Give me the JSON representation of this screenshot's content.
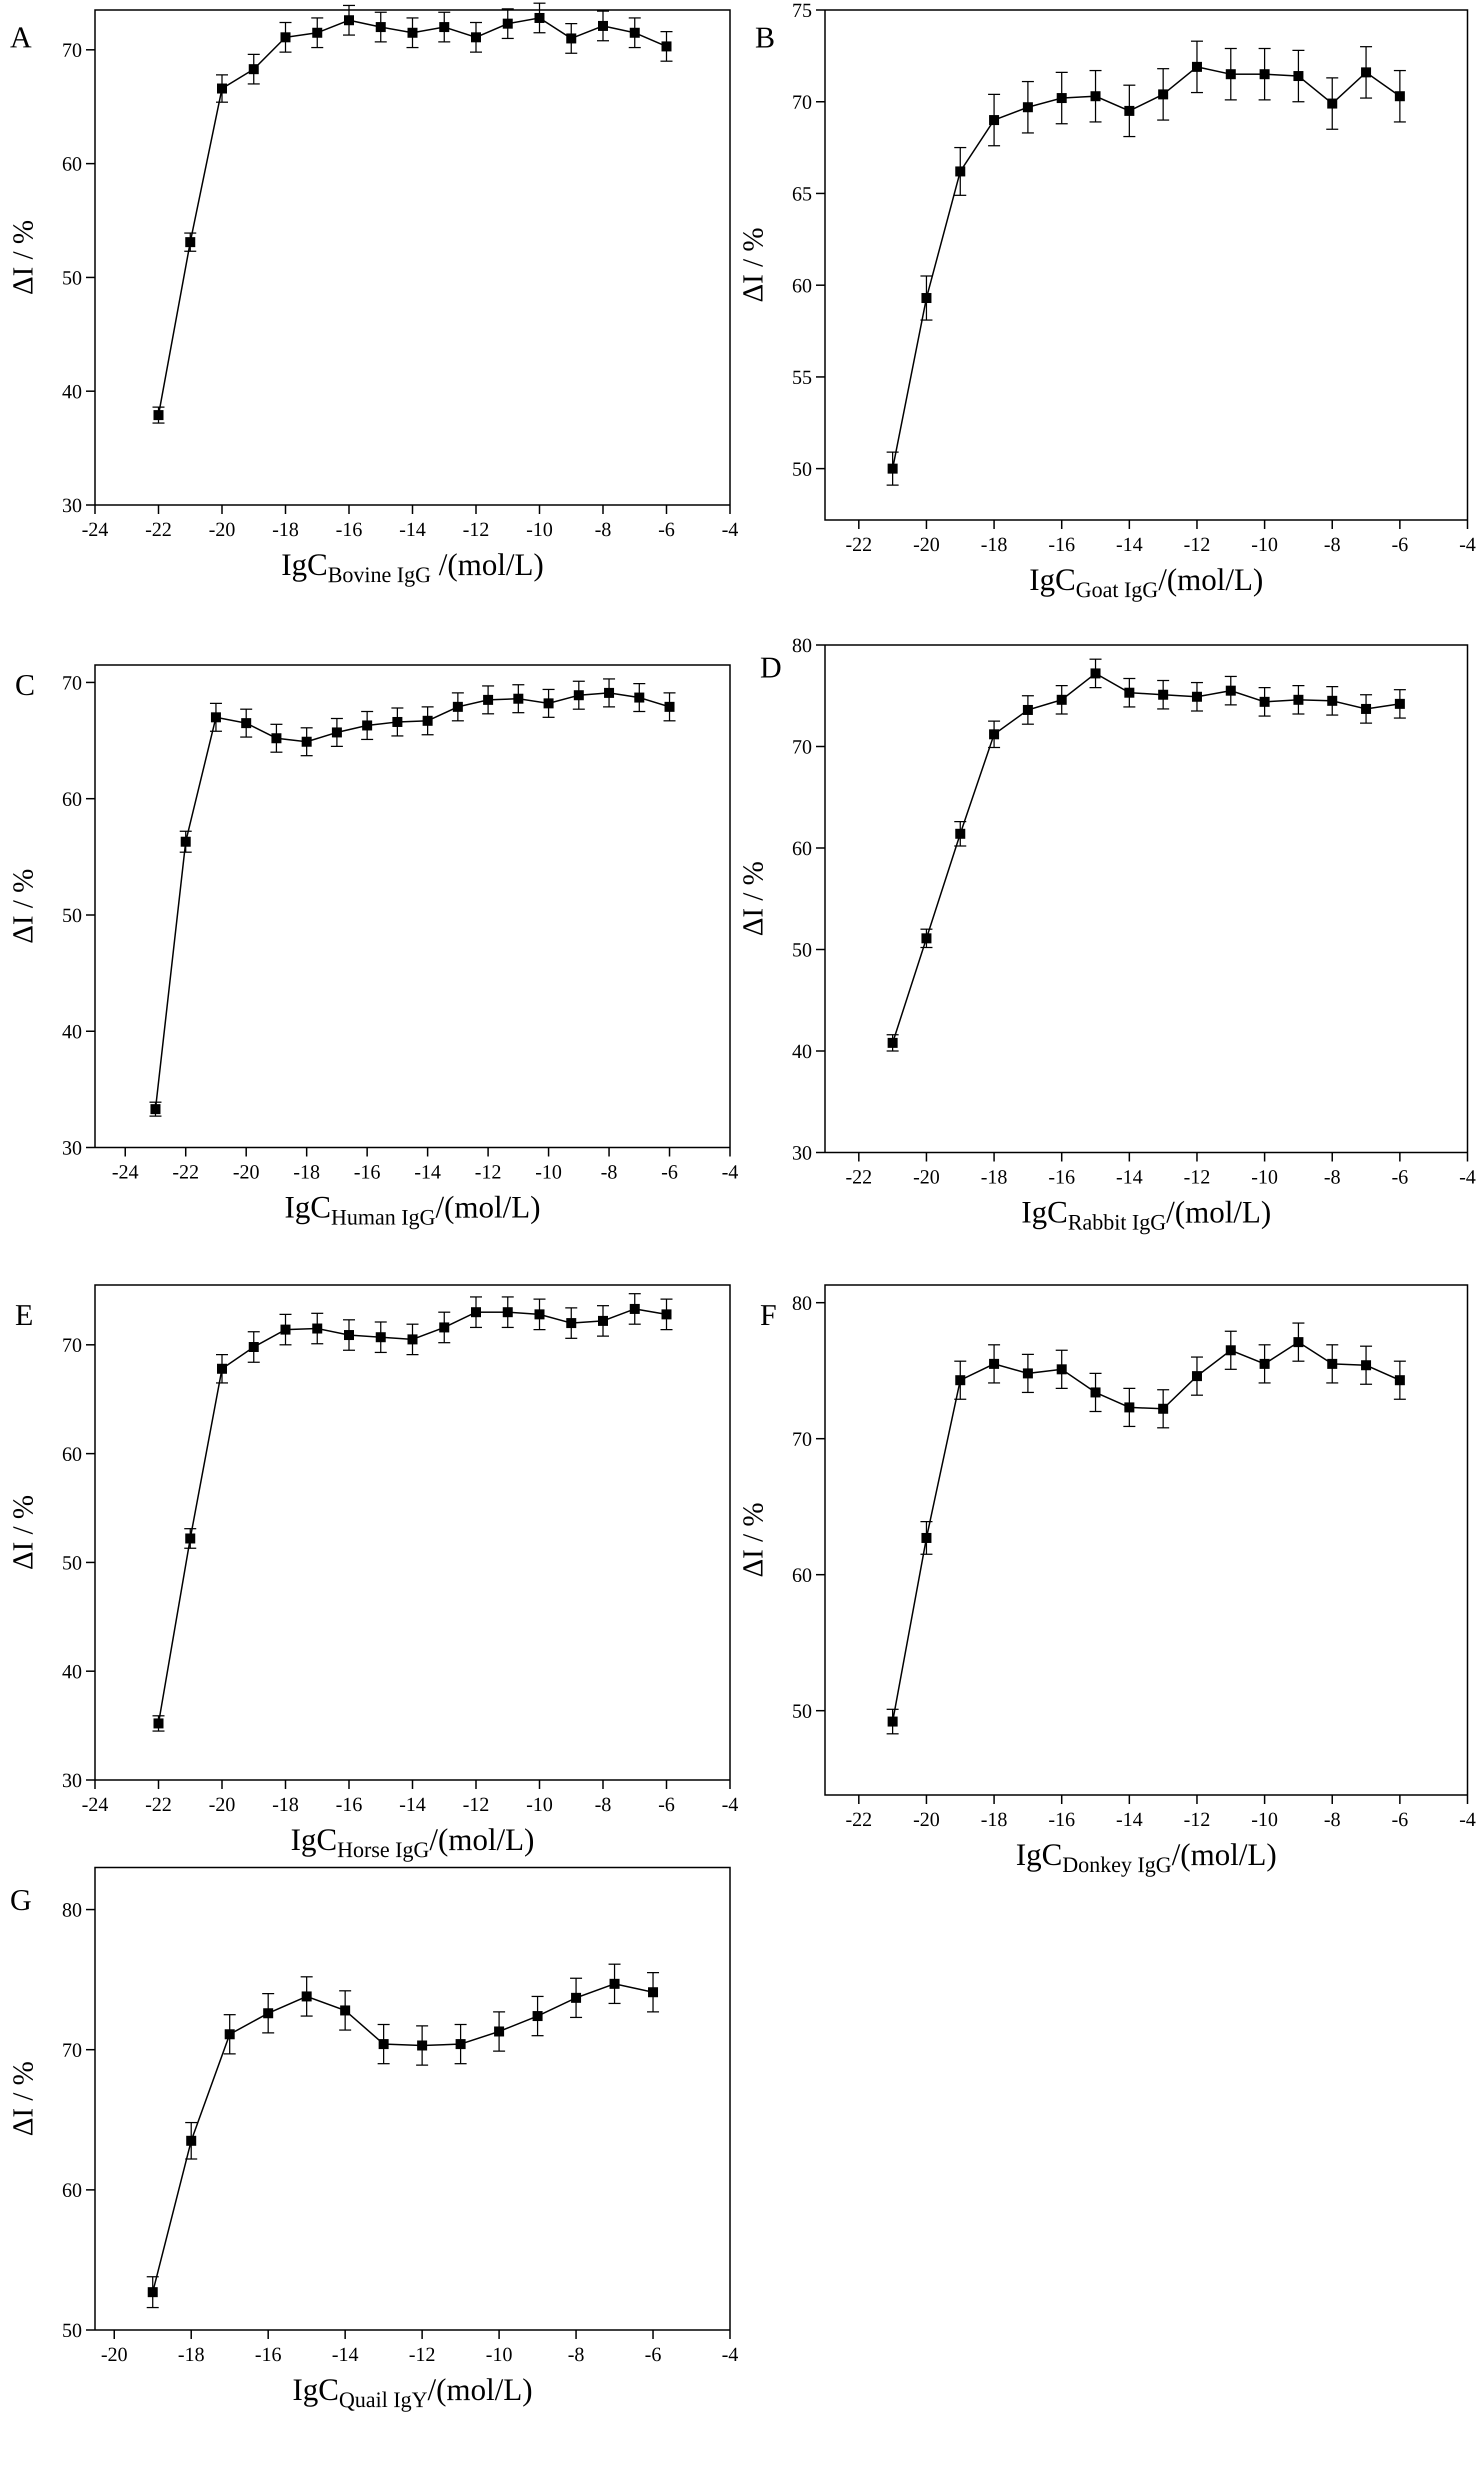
{
  "figure": {
    "y_axis_label": "ΔI / %",
    "x_axis_unit": "/(mol/L)"
  },
  "chart_data": [
    {
      "type": "line",
      "panel": "A",
      "xlabel_main": "IgC",
      "xlabel_sub": "Bovine IgG",
      "xlabel_tail": " /(mol/L)",
      "ylabel": "ΔI / %",
      "xlim": [
        -24,
        -4
      ],
      "ylim": [
        30,
        73.5
      ],
      "xticks": [
        -24,
        -22,
        -20,
        -18,
        -16,
        -14,
        -12,
        -10,
        -8,
        -6,
        -4
      ],
      "yticks": [
        30,
        40,
        50,
        60,
        70
      ],
      "x": [
        -22,
        -21,
        -20,
        -19,
        -18,
        -17,
        -16,
        -15,
        -14,
        -13,
        -12,
        -11,
        -10,
        -9,
        -8,
        -7,
        -6
      ],
      "y": [
        37.9,
        53.1,
        66.6,
        68.3,
        71.1,
        71.5,
        72.6,
        72.0,
        71.5,
        72.0,
        71.1,
        72.3,
        72.8,
        71.0,
        72.1,
        71.5,
        70.3
      ],
      "err": [
        0.7,
        0.8,
        1.2,
        1.3,
        1.3,
        1.3,
        1.3,
        1.3,
        1.3,
        1.3,
        1.3,
        1.3,
        1.3,
        1.3,
        1.3,
        1.3,
        1.3
      ]
    },
    {
      "type": "line",
      "panel": "B",
      "xlabel_main": "IgC",
      "xlabel_sub": "Goat IgG",
      "xlabel_tail": "/(mol/L)",
      "ylabel": "ΔI / %",
      "xlim": [
        -23,
        -4
      ],
      "ylim": [
        47.2,
        75
      ],
      "xticks": [
        -22,
        -20,
        -18,
        -16,
        -14,
        -12,
        -10,
        -8,
        -6,
        -4
      ],
      "yticks": [
        50,
        55,
        60,
        65,
        70,
        75
      ],
      "x": [
        -21,
        -20,
        -19,
        -18,
        -17,
        -16,
        -15,
        -14,
        -13,
        -12,
        -11,
        -10,
        -9,
        -8,
        -7,
        -6
      ],
      "y": [
        50.0,
        59.3,
        66.2,
        69.0,
        69.7,
        70.2,
        70.3,
        69.5,
        70.4,
        71.9,
        71.5,
        71.5,
        71.4,
        69.9,
        71.6,
        70.3
      ],
      "err": [
        0.9,
        1.2,
        1.3,
        1.4,
        1.4,
        1.4,
        1.4,
        1.4,
        1.4,
        1.4,
        1.4,
        1.4,
        1.4,
        1.4,
        1.4,
        1.4
      ]
    },
    {
      "type": "line",
      "panel": "C",
      "xlabel_main": "IgC",
      "xlabel_sub": "Human IgG",
      "xlabel_tail": "/(mol/L)",
      "ylabel": "ΔI / %",
      "xlim": [
        -25,
        -4
      ],
      "ylim": [
        30,
        71.5
      ],
      "xticks": [
        -24,
        -22,
        -20,
        -18,
        -16,
        -14,
        -12,
        -10,
        -8,
        -6,
        -4
      ],
      "yticks": [
        30,
        40,
        50,
        60,
        70
      ],
      "x": [
        -23,
        -22,
        -21,
        -20,
        -19,
        -18,
        -17,
        -16,
        -15,
        -14,
        -13,
        -12,
        -11,
        -10,
        -9,
        -8,
        -7,
        -6
      ],
      "y": [
        33.3,
        56.3,
        67.0,
        66.5,
        65.2,
        64.9,
        65.7,
        66.3,
        66.6,
        66.7,
        67.9,
        68.5,
        68.6,
        68.2,
        68.9,
        69.1,
        68.7,
        67.9
      ],
      "err": [
        0.6,
        0.9,
        1.2,
        1.2,
        1.2,
        1.2,
        1.2,
        1.2,
        1.2,
        1.2,
        1.2,
        1.2,
        1.2,
        1.2,
        1.2,
        1.2,
        1.2,
        1.2
      ]
    },
    {
      "type": "line",
      "panel": "D",
      "xlabel_main": "IgC",
      "xlabel_sub": "Rabbit IgG",
      "xlabel_tail": "/(mol/L)",
      "ylabel": "ΔI / %",
      "xlim": [
        -23,
        -4
      ],
      "ylim": [
        30,
        80
      ],
      "xticks": [
        -22,
        -20,
        -18,
        -16,
        -14,
        -12,
        -10,
        -8,
        -6,
        -4
      ],
      "yticks": [
        30,
        40,
        50,
        60,
        70,
        80
      ],
      "x": [
        -21,
        -20,
        -19,
        -18,
        -17,
        -16,
        -15,
        -14,
        -13,
        -12,
        -11,
        -10,
        -9,
        -8,
        -7,
        -6
      ],
      "y": [
        40.8,
        51.1,
        61.4,
        71.2,
        73.6,
        74.6,
        77.2,
        75.3,
        75.1,
        74.9,
        75.5,
        74.4,
        74.6,
        74.5,
        73.7,
        74.2
      ],
      "err": [
        0.8,
        0.9,
        1.2,
        1.3,
        1.4,
        1.4,
        1.4,
        1.4,
        1.4,
        1.4,
        1.4,
        1.4,
        1.4,
        1.4,
        1.4,
        1.4
      ]
    },
    {
      "type": "line",
      "panel": "E",
      "xlabel_main": "IgC",
      "xlabel_sub": "Horse IgG",
      "xlabel_tail": "/(mol/L)",
      "ylabel": "ΔI / %",
      "xlim": [
        -24,
        -4
      ],
      "ylim": [
        30,
        75.5
      ],
      "xticks": [
        -24,
        -22,
        -20,
        -18,
        -16,
        -14,
        -12,
        -10,
        -8,
        -6,
        -4
      ],
      "yticks": [
        30,
        40,
        50,
        60,
        70
      ],
      "x": [
        -22,
        -21,
        -20,
        -19,
        -18,
        -17,
        -16,
        -15,
        -14,
        -13,
        -12,
        -11,
        -10,
        -9,
        -8,
        -7,
        -6
      ],
      "y": [
        35.2,
        52.2,
        67.8,
        69.8,
        71.4,
        71.5,
        70.9,
        70.7,
        70.5,
        71.6,
        73.0,
        73.0,
        72.8,
        72.0,
        72.2,
        73.3,
        72.8
      ],
      "err": [
        0.7,
        0.9,
        1.3,
        1.4,
        1.4,
        1.4,
        1.4,
        1.4,
        1.4,
        1.4,
        1.4,
        1.4,
        1.4,
        1.4,
        1.4,
        1.4,
        1.4
      ]
    },
    {
      "type": "line",
      "panel": "F",
      "xlabel_main": "IgC",
      "xlabel_sub": "Donkey IgG",
      "xlabel_tail": "/(mol/L)",
      "ylabel": "ΔI / %",
      "xlim": [
        -23,
        -4
      ],
      "ylim": [
        43.8,
        81.3
      ],
      "xticks": [
        -22,
        -20,
        -18,
        -16,
        -14,
        -12,
        -10,
        -8,
        -6,
        -4
      ],
      "yticks": [
        50,
        60,
        70,
        80
      ],
      "x": [
        -21,
        -20,
        -19,
        -18,
        -17,
        -16,
        -15,
        -14,
        -13,
        -12,
        -11,
        -10,
        -9,
        -8,
        -7,
        -6
      ],
      "y": [
        49.2,
        62.7,
        74.3,
        75.5,
        74.8,
        75.1,
        73.4,
        72.3,
        72.2,
        74.6,
        76.5,
        75.5,
        77.1,
        75.5,
        75.4,
        74.3
      ],
      "err": [
        0.9,
        1.2,
        1.4,
        1.4,
        1.4,
        1.4,
        1.4,
        1.4,
        1.4,
        1.4,
        1.4,
        1.4,
        1.4,
        1.4,
        1.4,
        1.4
      ]
    },
    {
      "type": "line",
      "panel": "G",
      "xlabel_main": "IgC",
      "xlabel_sub": "Quail IgY",
      "xlabel_tail": "/(mol/L)",
      "ylabel": "ΔI / %",
      "xlim": [
        -20.5,
        -4
      ],
      "ylim": [
        50,
        83
      ],
      "xticks": [
        -20,
        -18,
        -16,
        -14,
        -12,
        -10,
        -8,
        -6,
        -4
      ],
      "yticks": [
        50,
        60,
        70,
        80
      ],
      "x": [
        -19,
        -18,
        -17,
        -16,
        -15,
        -14,
        -13,
        -12,
        -11,
        -10,
        -9,
        -8,
        -7,
        -6
      ],
      "y": [
        52.7,
        63.5,
        71.1,
        72.6,
        73.8,
        72.8,
        70.4,
        70.3,
        70.4,
        71.3,
        72.4,
        73.7,
        74.7,
        74.1
      ],
      "err": [
        1.1,
        1.3,
        1.4,
        1.4,
        1.4,
        1.4,
        1.4,
        1.4,
        1.4,
        1.4,
        1.4,
        1.4,
        1.4,
        1.4
      ]
    }
  ]
}
